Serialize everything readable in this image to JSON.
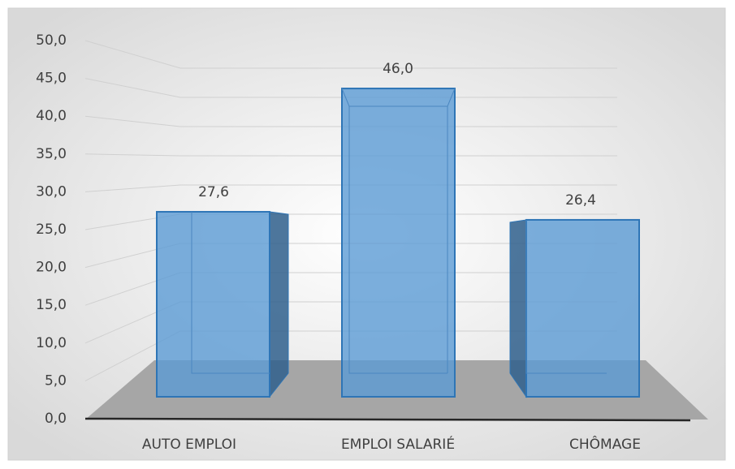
{
  "chart_data": {
    "type": "bar3d",
    "categories": [
      "AUTO EMPLOI",
      "EMPLOI SALARIÉ",
      "CHÔMAGE"
    ],
    "values": [
      27.6,
      46.0,
      26.4
    ],
    "value_labels": [
      "27,6",
      "46,0",
      "26,4"
    ],
    "color": "#5b9bd5",
    "ylim": [
      0,
      50
    ],
    "yticks": [
      {
        "value": 0,
        "label": "0,0"
      },
      {
        "value": 5,
        "label": "5,0"
      },
      {
        "value": 10,
        "label": "10,0"
      },
      {
        "value": 15,
        "label": "15,0"
      },
      {
        "value": 20,
        "label": "20,0"
      },
      {
        "value": 25,
        "label": "25,0"
      },
      {
        "value": 30,
        "label": "30,0"
      },
      {
        "value": 35,
        "label": "35,0"
      },
      {
        "value": 40,
        "label": "40,0"
      },
      {
        "value": 45,
        "label": "45,0"
      },
      {
        "value": 50,
        "label": "50,0"
      }
    ],
    "grid": true
  }
}
